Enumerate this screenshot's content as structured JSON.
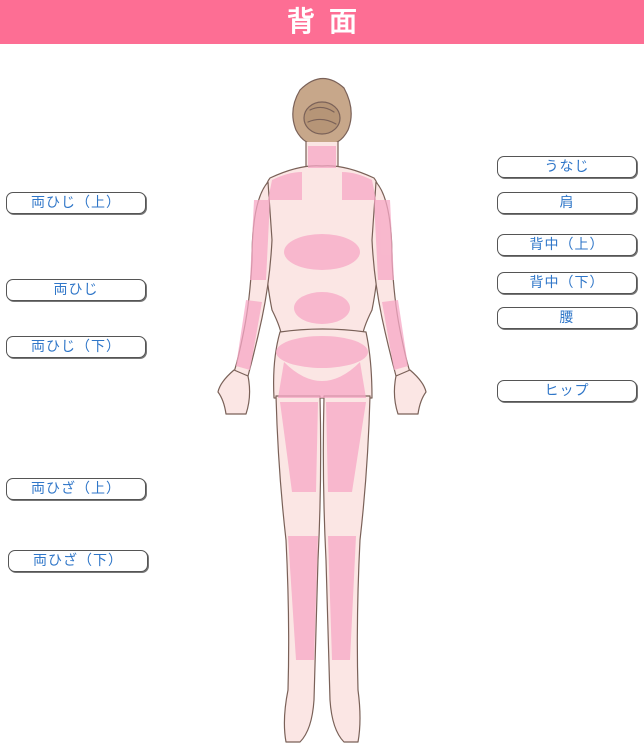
{
  "header": {
    "title": "背面"
  },
  "colors": {
    "accent": "#fd6e94",
    "highlight": "#f7a8c6",
    "button_text": "#2f76c8"
  },
  "buttons": {
    "left": [
      {
        "label": "両ひじ（上）"
      },
      {
        "label": "両ひじ"
      },
      {
        "label": "両ひじ（下）"
      },
      {
        "label": "両ひざ（上）"
      },
      {
        "label": "両ひざ（下）"
      }
    ],
    "right": [
      {
        "label": "うなじ"
      },
      {
        "label": "肩"
      },
      {
        "label": "背中（上）"
      },
      {
        "label": "背中（下）"
      },
      {
        "label": "腰"
      },
      {
        "label": "ヒップ"
      }
    ]
  }
}
